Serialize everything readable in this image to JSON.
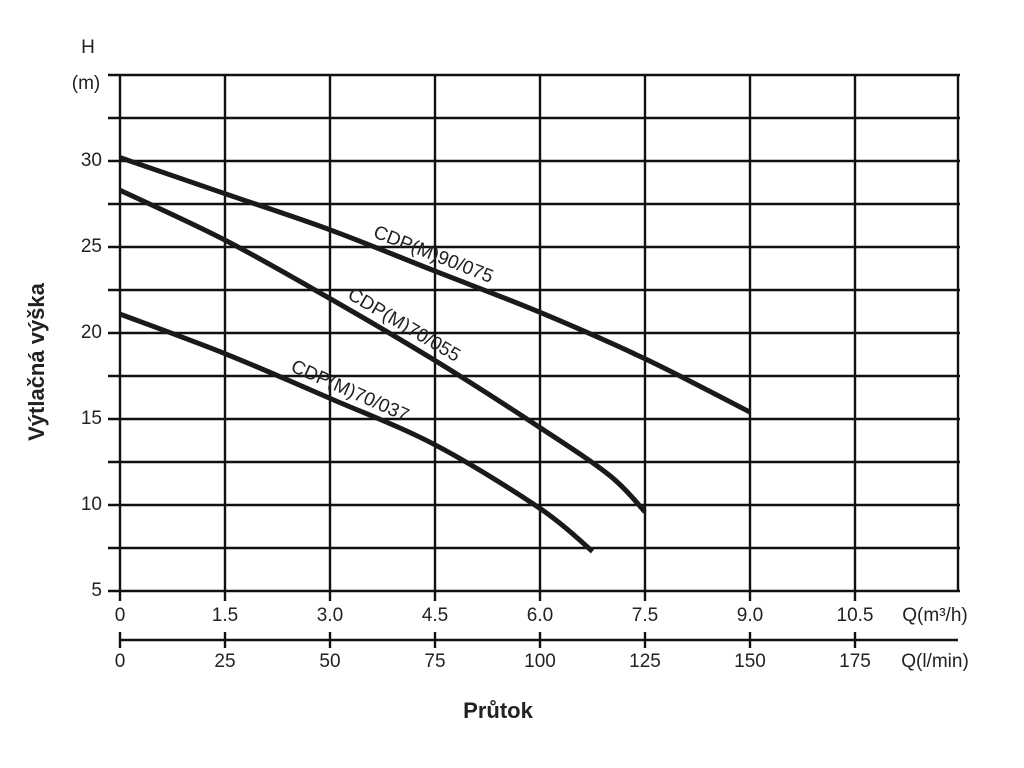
{
  "chart_data": {
    "type": "line",
    "y_label_unit_symbol": "H",
    "y_label_unit": "(m)",
    "y_label": "Výtlačná výška",
    "x_label": "Průtok",
    "x_unit_label": "Q(m³/h)",
    "x2_unit_label": "Q(l/min)",
    "xlim": [
      0,
      12
    ],
    "xticks": [
      0,
      1.5,
      {
        "value": 3,
        "label": "3.0"
      },
      4.5,
      {
        "value": 6,
        "label": "6.0"
      },
      7.5,
      {
        "value": 9,
        "label": "9.0"
      },
      10.5
    ],
    "x2lim": [
      0,
      200
    ],
    "x2ticks": [
      0,
      25,
      50,
      75,
      100,
      125,
      150,
      175
    ],
    "ylim": [
      5,
      35
    ],
    "yticks": [
      5,
      10,
      15,
      20,
      25,
      30
    ],
    "minor_yticks": [
      7.5,
      12.5,
      17.5,
      22.5,
      27.5,
      32.5,
      35
    ],
    "grid": true,
    "series": [
      {
        "name": "CDP(M)90/075",
        "color": "#1a1a1a",
        "x": [
          0,
          1.5,
          3,
          4.5,
          6,
          7.5,
          9
        ],
        "values": [
          30.2,
          28.1,
          26,
          23.6,
          21.2,
          18.5,
          15.4
        ]
      },
      {
        "name": "CDP(M)70/055",
        "color": "#1a1a1a",
        "x": [
          0,
          1.5,
          3,
          4.5,
          6,
          7,
          7.5
        ],
        "values": [
          28.3,
          25.4,
          22,
          18.4,
          14.5,
          11.7,
          9.6
        ]
      },
      {
        "name": "CDP(M)70/037",
        "color": "#1a1a1a",
        "x": [
          0,
          1.5,
          3,
          4.5,
          6,
          6.75
        ],
        "values": [
          21.1,
          18.8,
          16.2,
          13.5,
          9.8,
          7.3
        ]
      }
    ]
  }
}
